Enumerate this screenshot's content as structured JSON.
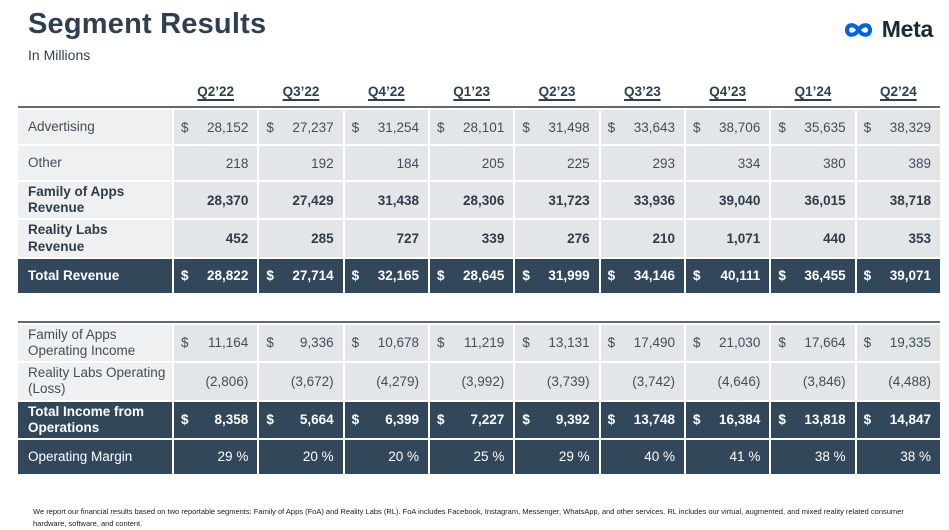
{
  "header": {
    "title": "Segment Results",
    "subtitle": "In Millions"
  },
  "logo": {
    "text": "Meta"
  },
  "colors": {
    "dark_row": "#33475A",
    "light_cell": "#E3E6E9",
    "label_cell": "#EEF0F2",
    "meta_blue": "#0064E0",
    "rule": "#5C6B77",
    "ink": "#2E3F50"
  },
  "columns": [
    "Q2’22",
    "Q3’22",
    "Q4’22",
    "Q1’23",
    "Q2’23",
    "Q3’23",
    "Q4’23",
    "Q1’24",
    "Q2’24"
  ],
  "revenue_table": {
    "rows": [
      {
        "label": "Advertising",
        "prefix": "$",
        "bold": false,
        "dark": false,
        "values": [
          "28,152",
          "27,237",
          "31,254",
          "28,101",
          "31,498",
          "33,643",
          "38,706",
          "35,635",
          "38,329"
        ]
      },
      {
        "label": "Other",
        "prefix": "",
        "bold": false,
        "dark": false,
        "values": [
          "218",
          "192",
          "184",
          "205",
          "225",
          "293",
          "334",
          "380",
          "389"
        ]
      },
      {
        "label": "Family of Apps Revenue",
        "prefix": "",
        "bold": true,
        "dark": false,
        "values": [
          "28,370",
          "27,429",
          "31,438",
          "28,306",
          "31,723",
          "33,936",
          "39,040",
          "36,015",
          "38,718"
        ]
      },
      {
        "label": "Reality Labs Revenue",
        "prefix": "",
        "bold": true,
        "dark": false,
        "values": [
          "452",
          "285",
          "727",
          "339",
          "276",
          "210",
          "1,071",
          "440",
          "353"
        ]
      },
      {
        "label": "Total Revenue",
        "prefix": "$",
        "bold": true,
        "dark": true,
        "values": [
          "28,822",
          "27,714",
          "32,165",
          "28,645",
          "31,999",
          "34,146",
          "40,111",
          "36,455",
          "39,071"
        ]
      }
    ]
  },
  "income_table": {
    "rows": [
      {
        "label": "Family of Apps Operating Income",
        "prefix": "$",
        "bold": false,
        "dark": false,
        "values": [
          "11,164",
          "9,336",
          "10,678",
          "11,219",
          "13,131",
          "17,490",
          "21,030",
          "17,664",
          "19,335"
        ]
      },
      {
        "label": "Reality Labs Operating (Loss)",
        "prefix": "",
        "bold": false,
        "dark": false,
        "values": [
          "(2,806)",
          "(3,672)",
          "(4,279)",
          "(3,992)",
          "(3,739)",
          "(3,742)",
          "(4,646)",
          "(3,846)",
          "(4,488)"
        ]
      },
      {
        "label": "Total Income from Operations",
        "prefix": "$",
        "bold": true,
        "dark": true,
        "values": [
          "8,358",
          "5,664",
          "6,399",
          "7,227",
          "9,392",
          "13,748",
          "16,384",
          "13,818",
          "14,847"
        ]
      },
      {
        "label": "Operating Margin",
        "prefix": "",
        "bold": false,
        "dark": true,
        "values": [
          "29 %",
          "20 %",
          "20 %",
          "25 %",
          "29 %",
          "40 %",
          "41 %",
          "38 %",
          "38 %"
        ]
      }
    ]
  },
  "footnote": "We report our financial results based on two reportable segments: Family of Apps (FoA) and Reality Labs (RL). FoA includes Facebook, Instagram, Messenger, WhatsApp, and other services. RL includes our virtual, augmented, and mixed reality related consumer hardware, software, and content."
}
